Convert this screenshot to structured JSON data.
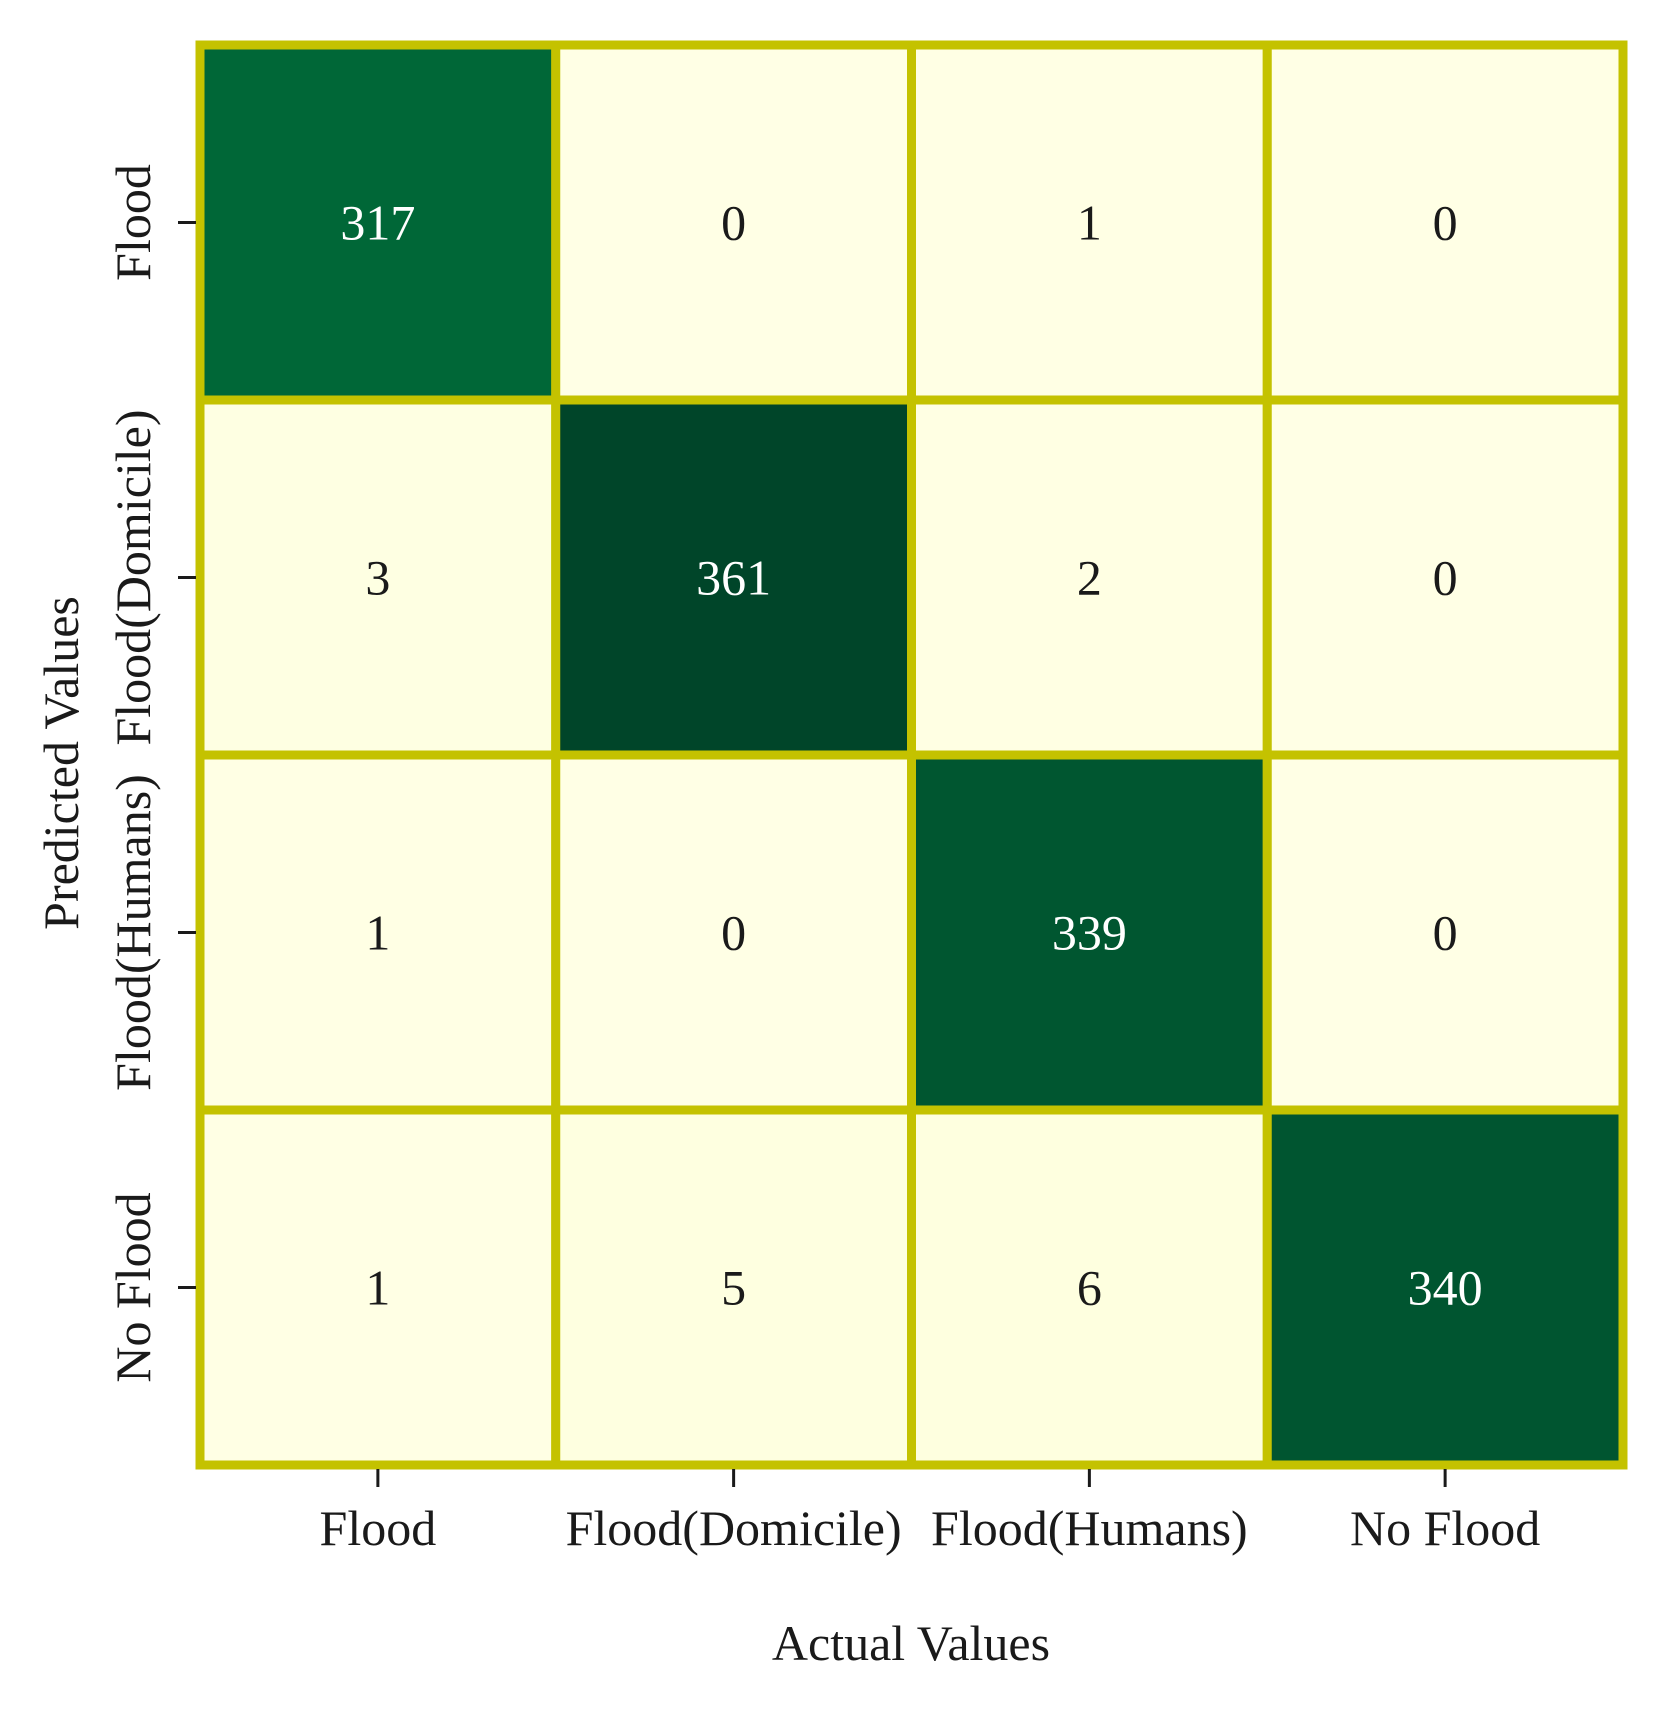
{
  "chart_data": {
    "type": "heatmap",
    "title": "",
    "xlabel": "Actual Values",
    "ylabel": "Predicted Values",
    "x_categories": [
      "Flood",
      "Flood(Domicile)",
      "Flood(Humans)",
      "No Flood"
    ],
    "y_categories": [
      "Flood",
      "Flood(Domicile)",
      "Flood(Humans)",
      "No Flood"
    ],
    "values": [
      [
        317,
        0,
        1,
        0
      ],
      [
        3,
        361,
        2,
        0
      ],
      [
        1,
        0,
        339,
        0
      ],
      [
        1,
        5,
        6,
        340
      ]
    ],
    "colormap": "YlGn",
    "colors": {
      "low": "#ffffe5",
      "high": "#004529",
      "cell_border": "#c4c200",
      "text_dark": "#1a1a1a",
      "text_light": "#ffffff"
    },
    "colorbar": false,
    "grid": true
  }
}
